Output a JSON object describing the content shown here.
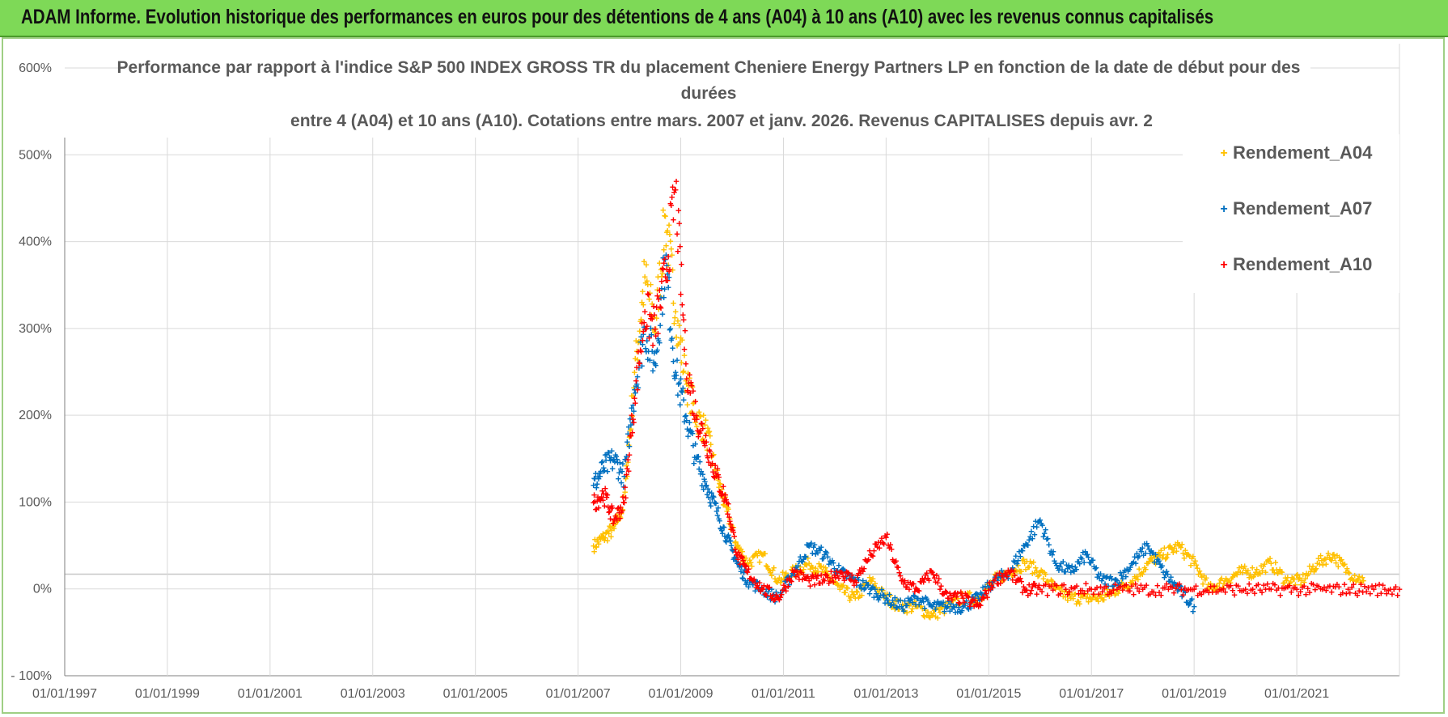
{
  "header": {
    "title": "ADAM Informe. Evolution historique des performances en euros pour des détentions de 4 ans (A04) à 10 ans (A10) avec les revenus connus capitalisés"
  },
  "colors": {
    "banner": "#7ed957",
    "A04": "#ffc000",
    "A07": "#0070c0",
    "A10": "#ff0000",
    "grid": "#d9d9d9",
    "text": "#595959"
  },
  "chart_data": {
    "type": "scatter",
    "title_lines": [
      "Performance par rapport à l'indice S&P 500 INDEX GROSS TR  du placement Cheniere Energy Partners LP en fonction de la date de début pour des",
      "durées",
      "entre 4 (A04) et 10 ans (A10).  Cotations entre mars. 2007 et janv. 2026.  Revenus CAPITALISES depuis avr. 2"
    ],
    "xlabel": "",
    "ylabel": "",
    "x_range": [
      "1997-01-01",
      "2023-01-01"
    ],
    "x_tick_labels": [
      "01/01/1997",
      "01/01/1999",
      "01/01/2001",
      "01/01/2003",
      "01/01/2005",
      "01/01/2007",
      "01/01/2009",
      "01/01/2011",
      "01/01/2013",
      "01/01/2015",
      "01/01/2017",
      "01/01/2019",
      "01/01/2021"
    ],
    "ylim": [
      -1.0,
      6.0
    ],
    "y_tick_labels": [
      "- 100%",
      "0%",
      "100%",
      "200%",
      "300%",
      "400%",
      "500%",
      "600%"
    ],
    "grid": true,
    "legend_position": "top-right",
    "series": [
      {
        "name": "Rendement_A04",
        "color": "#ffc000",
        "x": [
          2007.3,
          2007.5,
          2007.7,
          2007.9,
          2008.1,
          2008.3,
          2008.5,
          2008.7,
          2008.9,
          2009.1,
          2009.3,
          2009.5,
          2009.7,
          2009.9,
          2010.1,
          2010.3,
          2010.6,
          2010.9,
          2011.2,
          2011.5,
          2011.8,
          2012.1,
          2012.4,
          2012.7,
          2013.0,
          2013.3,
          2013.6,
          2013.9,
          2014.2,
          2014.5,
          2014.8,
          2015.1,
          2015.4,
          2015.7,
          2016.0,
          2016.3,
          2016.6,
          2016.9,
          2017.2,
          2017.5,
          2017.8,
          2018.1,
          2018.4,
          2018.7,
          2019.0,
          2019.3,
          2019.6,
          2019.9,
          2020.2,
          2020.5,
          2020.8,
          2021.1,
          2021.4,
          2021.7,
          2022.0,
          2022.3
        ],
        "y": [
          0.5,
          0.6,
          0.7,
          1.0,
          2.5,
          3.6,
          3.0,
          4.3,
          3.2,
          2.4,
          2.0,
          1.8,
          1.3,
          0.9,
          0.5,
          0.3,
          0.4,
          0.1,
          0.2,
          0.3,
          0.2,
          0.0,
          -0.1,
          0.1,
          -0.1,
          -0.2,
          -0.2,
          -0.3,
          -0.2,
          -0.1,
          -0.1,
          0.1,
          0.2,
          0.3,
          0.2,
          0.0,
          -0.1,
          -0.1,
          -0.1,
          0.0,
          0.1,
          0.3,
          0.4,
          0.5,
          0.3,
          0.0,
          0.1,
          0.2,
          0.2,
          0.3,
          0.1,
          0.1,
          0.3,
          0.4,
          0.2,
          0.1
        ]
      },
      {
        "name": "Rendement_A07",
        "color": "#0070c0",
        "x": [
          2007.3,
          2007.5,
          2007.7,
          2007.9,
          2008.1,
          2008.3,
          2008.5,
          2008.7,
          2008.9,
          2009.1,
          2009.3,
          2009.5,
          2009.7,
          2009.9,
          2010.1,
          2010.3,
          2010.6,
          2010.9,
          2011.2,
          2011.5,
          2011.8,
          2012.1,
          2012.4,
          2012.7,
          2013.0,
          2013.3,
          2013.6,
          2013.9,
          2014.2,
          2014.5,
          2014.8,
          2015.1,
          2015.4,
          2015.7,
          2016.0,
          2016.3,
          2016.6,
          2016.9,
          2017.2,
          2017.5,
          2017.8,
          2018.1,
          2018.4,
          2018.7,
          2019.0
        ],
        "y": [
          1.2,
          1.4,
          1.5,
          1.3,
          2.3,
          3.0,
          2.6,
          3.8,
          2.5,
          2.0,
          1.5,
          1.2,
          0.9,
          0.6,
          0.3,
          0.1,
          0.0,
          -0.1,
          0.2,
          0.5,
          0.4,
          0.2,
          0.1,
          0.0,
          -0.1,
          -0.2,
          -0.1,
          -0.2,
          -0.2,
          -0.2,
          -0.1,
          0.1,
          0.2,
          0.5,
          0.8,
          0.3,
          0.2,
          0.4,
          0.1,
          0.1,
          0.3,
          0.5,
          0.2,
          0.0,
          -0.2
        ]
      },
      {
        "name": "Rendement_A10",
        "color": "#ff0000",
        "x": [
          2007.3,
          2007.5,
          2007.7,
          2007.9,
          2008.1,
          2008.3,
          2008.5,
          2008.7,
          2008.9,
          2009.1,
          2009.3,
          2009.5,
          2009.7,
          2009.9,
          2010.1,
          2010.3,
          2010.6,
          2010.9,
          2011.2,
          2011.5,
          2011.8,
          2012.1,
          2012.4,
          2012.7,
          2013.0,
          2013.3,
          2013.6,
          2013.9,
          2014.2,
          2014.5,
          2014.8,
          2015.1,
          2015.4,
          2015.7,
          2016.0,
          2016.5,
          2017.0,
          2017.5,
          2018.0,
          2018.5,
          2019.0,
          2019.5,
          2020.0,
          2020.5,
          2021.0,
          2021.5,
          2022.0,
          2022.5,
          2023.0
        ],
        "y": [
          1.0,
          1.1,
          0.8,
          1.0,
          2.2,
          3.2,
          3.0,
          3.6,
          4.6,
          2.6,
          2.0,
          1.7,
          1.3,
          1.0,
          0.4,
          0.2,
          0.0,
          -0.1,
          0.2,
          0.1,
          0.1,
          0.2,
          0.1,
          0.4,
          0.6,
          0.1,
          0.0,
          0.2,
          -0.1,
          -0.1,
          -0.2,
          0.1,
          0.2,
          0.0,
          0.0,
          0.0,
          0.0,
          0.0,
          0.0,
          0.0,
          0.0,
          0.0,
          0.0,
          0.0,
          0.0,
          0.0,
          0.0,
          0.0,
          0.0
        ]
      }
    ]
  }
}
